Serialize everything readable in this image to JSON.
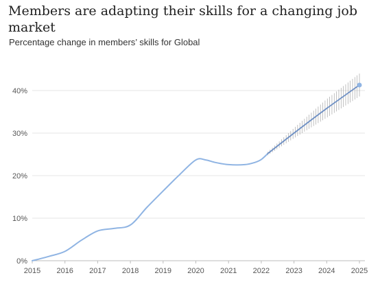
{
  "title": "Members are adapting their skills for a changing job market",
  "subtitle": "Percentage change in members’ skills for Global",
  "chart_data": {
    "type": "line",
    "title": "Members are adapting their skills for a changing job market",
    "subtitle": "Percentage change in members’ skills for Global",
    "xlabel": "",
    "ylabel": "",
    "xlim": [
      2015,
      2025
    ],
    "ylim": [
      0,
      40
    ],
    "x_ticks": [
      "2015",
      "2016",
      "2017",
      "2018",
      "2019",
      "2020",
      "2021",
      "2022",
      "2023",
      "2024",
      "2025"
    ],
    "y_ticks": [
      "0%",
      "10%",
      "20%",
      "30%",
      "40%"
    ],
    "y_tick_values": [
      0,
      10,
      20,
      30,
      40
    ],
    "grid": "horizontal",
    "series": [
      {
        "values_actual": [
          [
            2015.0,
            0.0
          ],
          [
            2015.5,
            1.0
          ],
          [
            2016.0,
            2.2
          ],
          [
            2016.5,
            4.8
          ],
          [
            2017.0,
            7.0
          ],
          [
            2017.5,
            7.6
          ],
          [
            2018.0,
            8.4
          ],
          [
            2018.5,
            12.5
          ],
          [
            2019.0,
            16.4
          ],
          [
            2019.5,
            20.2
          ],
          [
            2020.0,
            23.7
          ],
          [
            2020.3,
            23.7
          ],
          [
            2020.6,
            23.1
          ],
          [
            2021.0,
            22.6
          ],
          [
            2021.5,
            22.6
          ],
          [
            2021.8,
            23.1
          ],
          [
            2022.0,
            23.8
          ],
          [
            2022.2,
            25.2
          ]
        ],
        "values_forecast": [
          [
            2022.2,
            25.2
          ],
          [
            2023.0,
            30.0
          ],
          [
            2024.0,
            35.8
          ],
          [
            2025.0,
            41.3
          ]
        ],
        "forecast_band": [
          [
            2022.2,
            24.8,
            25.6
          ],
          [
            2023.0,
            28.8,
            31.2
          ],
          [
            2024.0,
            33.6,
            38.0
          ],
          [
            2025.0,
            38.6,
            44.0
          ]
        ]
      }
    ],
    "colors": {
      "line": "#8fb4e3",
      "forecast_line": "#6d8fc4",
      "band": "#888888",
      "grid": "#e4e4e4",
      "endpoint": "#8fb4e3"
    }
  }
}
